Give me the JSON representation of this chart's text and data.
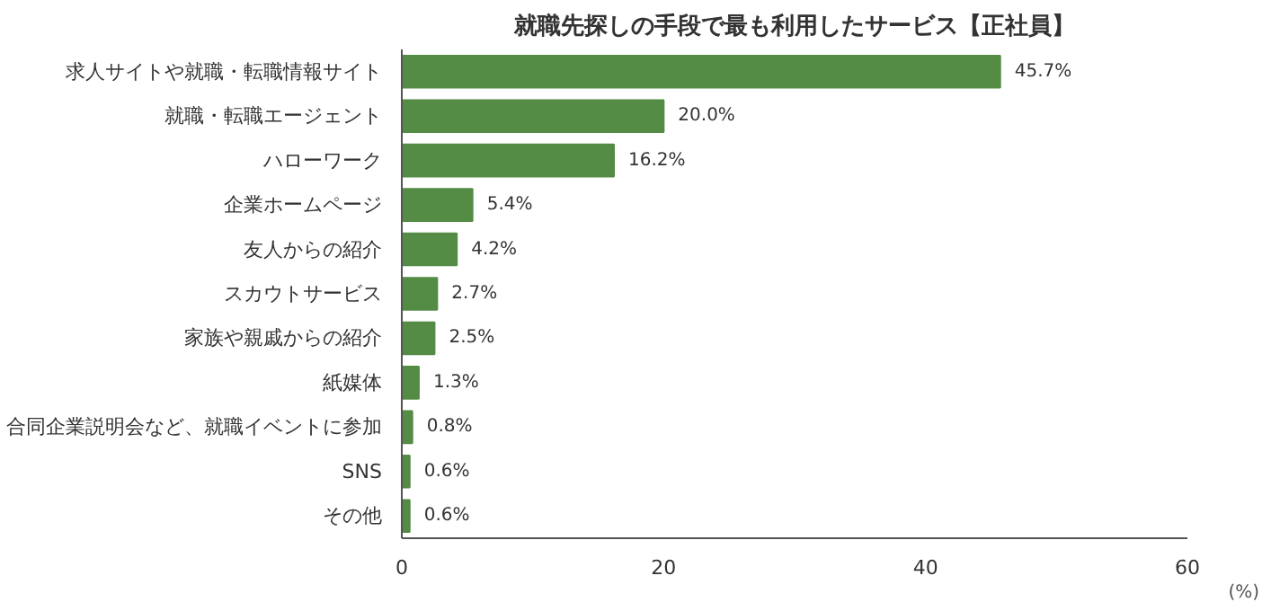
{
  "chart_data": {
    "type": "bar",
    "orientation": "horizontal",
    "title": "就職先探しの手段で最も利用したサービス【正社員】",
    "xlabel": "(%)",
    "categories": [
      "求人サイトや就職・転職情報サイト",
      "就職・転職エージェント",
      "ハローワーク",
      "企業ホームページ",
      "友人からの紹介",
      "スカウトサービス",
      "家族や親戚からの紹介",
      "紙媒体",
      "合同企業説明会など、就職イベントに参加",
      "SNS",
      "その他"
    ],
    "values": [
      45.7,
      20.0,
      16.2,
      5.4,
      4.2,
      2.7,
      2.5,
      1.3,
      0.8,
      0.6,
      0.6
    ],
    "value_labels": [
      "45.7%",
      "20.0%",
      "16.2%",
      "5.4%",
      "4.2%",
      "2.7%",
      "2.5%",
      "1.3%",
      "0.8%",
      "0.6%",
      "0.6%"
    ],
    "color": "#548b45",
    "xlim": [
      0,
      60
    ],
    "xticks": [
      0,
      20,
      40,
      60
    ],
    "grid": false
  }
}
